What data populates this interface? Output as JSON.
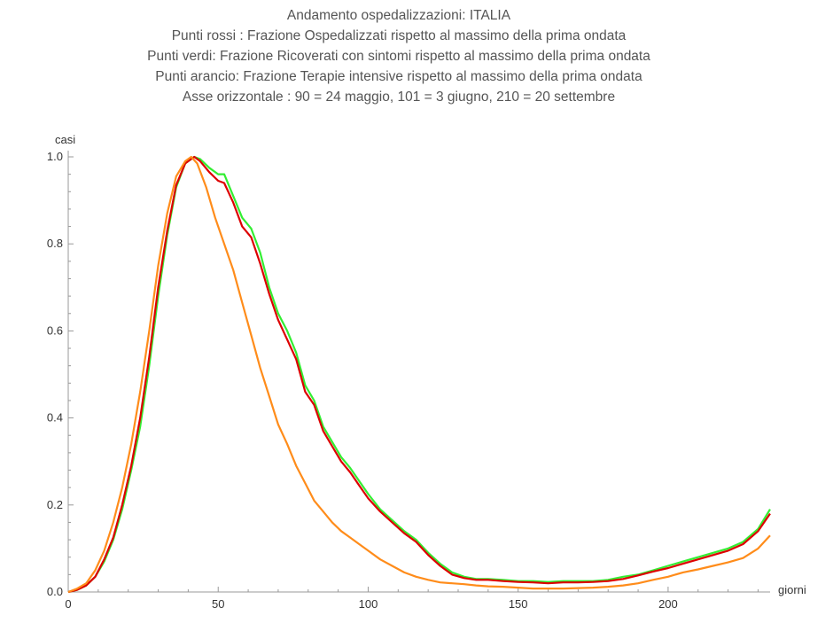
{
  "title_lines": [
    "Andamento ospedalizzazioni: ITALIA",
    "Punti rossi : Frazione  Ospedalizzati rispetto al massimo della prima ondata",
    "Punti verdi: Frazione Ricoverati con sintomi rispetto al massimo della prima ondata",
    "Punti arancio: Frazione Terapie intensive rispetto al massimo della prima ondata",
    "Asse orizzontale : 90 = 24 maggio, 101 = 3 giugno, 210 = 20 settembre"
  ],
  "chart_data": {
    "type": "line",
    "xlabel": "giorni",
    "ylabel": "casi",
    "xlim": [
      0,
      234
    ],
    "ylim": [
      0,
      1.0
    ],
    "x_ticks": [
      0,
      50,
      100,
      150,
      200
    ],
    "y_ticks": [
      0.0,
      0.2,
      0.4,
      0.6,
      0.8,
      1.0
    ],
    "x_tick_labels": [
      "0",
      "50",
      "100",
      "150",
      "200"
    ],
    "y_tick_labels": [
      "0.0",
      "0.2",
      "0.4",
      "0.6",
      "0.8",
      "1.0"
    ],
    "grid": false,
    "series": [
      {
        "color": "#33ee33",
        "points": [
          [
            0,
            0
          ],
          [
            3,
            0.005
          ],
          [
            6,
            0.015
          ],
          [
            9,
            0.035
          ],
          [
            12,
            0.07
          ],
          [
            15,
            0.12
          ],
          [
            18,
            0.19
          ],
          [
            21,
            0.28
          ],
          [
            24,
            0.38
          ],
          [
            27,
            0.52
          ],
          [
            30,
            0.68
          ],
          [
            33,
            0.82
          ],
          [
            36,
            0.93
          ],
          [
            39,
            0.985
          ],
          [
            42,
            1.0
          ],
          [
            44,
            0.995
          ],
          [
            47,
            0.975
          ],
          [
            50,
            0.96
          ],
          [
            52,
            0.96
          ],
          [
            55,
            0.91
          ],
          [
            58,
            0.86
          ],
          [
            61,
            0.835
          ],
          [
            64,
            0.78
          ],
          [
            67,
            0.7
          ],
          [
            70,
            0.64
          ],
          [
            73,
            0.6
          ],
          [
            76,
            0.55
          ],
          [
            79,
            0.475
          ],
          [
            82,
            0.44
          ],
          [
            85,
            0.38
          ],
          [
            88,
            0.345
          ],
          [
            91,
            0.31
          ],
          [
            94,
            0.285
          ],
          [
            97,
            0.255
          ],
          [
            100,
            0.225
          ],
          [
            104,
            0.19
          ],
          [
            108,
            0.165
          ],
          [
            112,
            0.14
          ],
          [
            116,
            0.12
          ],
          [
            120,
            0.09
          ],
          [
            124,
            0.065
          ],
          [
            128,
            0.045
          ],
          [
            132,
            0.035
          ],
          [
            136,
            0.03
          ],
          [
            140,
            0.03
          ],
          [
            145,
            0.028
          ],
          [
            150,
            0.025
          ],
          [
            155,
            0.025
          ],
          [
            160,
            0.023
          ],
          [
            165,
            0.025
          ],
          [
            170,
            0.025
          ],
          [
            175,
            0.025
          ],
          [
            180,
            0.028
          ],
          [
            185,
            0.035
          ],
          [
            190,
            0.04
          ],
          [
            195,
            0.05
          ],
          [
            200,
            0.06
          ],
          [
            205,
            0.07
          ],
          [
            210,
            0.08
          ],
          [
            215,
            0.09
          ],
          [
            220,
            0.1
          ],
          [
            225,
            0.115
          ],
          [
            230,
            0.145
          ],
          [
            234,
            0.19
          ]
        ]
      },
      {
        "color": "#dd0000",
        "points": [
          [
            0,
            0
          ],
          [
            3,
            0.005
          ],
          [
            6,
            0.015
          ],
          [
            9,
            0.035
          ],
          [
            12,
            0.075
          ],
          [
            15,
            0.125
          ],
          [
            18,
            0.2
          ],
          [
            21,
            0.29
          ],
          [
            24,
            0.4
          ],
          [
            27,
            0.54
          ],
          [
            30,
            0.7
          ],
          [
            33,
            0.83
          ],
          [
            36,
            0.935
          ],
          [
            39,
            0.985
          ],
          [
            42,
            1.0
          ],
          [
            44,
            0.99
          ],
          [
            47,
            0.965
          ],
          [
            50,
            0.945
          ],
          [
            52,
            0.94
          ],
          [
            55,
            0.895
          ],
          [
            58,
            0.84
          ],
          [
            61,
            0.815
          ],
          [
            64,
            0.755
          ],
          [
            67,
            0.685
          ],
          [
            70,
            0.625
          ],
          [
            73,
            0.58
          ],
          [
            76,
            0.535
          ],
          [
            79,
            0.46
          ],
          [
            82,
            0.43
          ],
          [
            85,
            0.37
          ],
          [
            88,
            0.335
          ],
          [
            91,
            0.3
          ],
          [
            94,
            0.275
          ],
          [
            97,
            0.245
          ],
          [
            100,
            0.215
          ],
          [
            104,
            0.185
          ],
          [
            108,
            0.16
          ],
          [
            112,
            0.135
          ],
          [
            116,
            0.115
          ],
          [
            120,
            0.085
          ],
          [
            124,
            0.06
          ],
          [
            128,
            0.04
          ],
          [
            132,
            0.032
          ],
          [
            136,
            0.028
          ],
          [
            140,
            0.028
          ],
          [
            145,
            0.025
          ],
          [
            150,
            0.023
          ],
          [
            155,
            0.022
          ],
          [
            160,
            0.02
          ],
          [
            165,
            0.022
          ],
          [
            170,
            0.022
          ],
          [
            175,
            0.023
          ],
          [
            180,
            0.025
          ],
          [
            185,
            0.03
          ],
          [
            190,
            0.038
          ],
          [
            195,
            0.047
          ],
          [
            200,
            0.055
          ],
          [
            205,
            0.065
          ],
          [
            210,
            0.075
          ],
          [
            215,
            0.085
          ],
          [
            220,
            0.095
          ],
          [
            225,
            0.11
          ],
          [
            230,
            0.14
          ],
          [
            234,
            0.18
          ]
        ]
      },
      {
        "color": "#ff8c1a",
        "points": [
          [
            0,
            0
          ],
          [
            3,
            0.008
          ],
          [
            6,
            0.02
          ],
          [
            9,
            0.05
          ],
          [
            12,
            0.095
          ],
          [
            15,
            0.16
          ],
          [
            18,
            0.24
          ],
          [
            21,
            0.34
          ],
          [
            24,
            0.46
          ],
          [
            27,
            0.6
          ],
          [
            30,
            0.75
          ],
          [
            33,
            0.87
          ],
          [
            36,
            0.955
          ],
          [
            39,
            0.99
          ],
          [
            41,
            1.0
          ],
          [
            43,
            0.985
          ],
          [
            46,
            0.93
          ],
          [
            49,
            0.86
          ],
          [
            52,
            0.8
          ],
          [
            55,
            0.74
          ],
          [
            58,
            0.665
          ],
          [
            61,
            0.59
          ],
          [
            64,
            0.515
          ],
          [
            67,
            0.45
          ],
          [
            70,
            0.385
          ],
          [
            73,
            0.34
          ],
          [
            76,
            0.29
          ],
          [
            79,
            0.25
          ],
          [
            82,
            0.21
          ],
          [
            85,
            0.185
          ],
          [
            88,
            0.16
          ],
          [
            91,
            0.14
          ],
          [
            94,
            0.125
          ],
          [
            97,
            0.11
          ],
          [
            100,
            0.095
          ],
          [
            104,
            0.075
          ],
          [
            108,
            0.06
          ],
          [
            112,
            0.045
          ],
          [
            116,
            0.035
          ],
          [
            120,
            0.028
          ],
          [
            124,
            0.022
          ],
          [
            128,
            0.02
          ],
          [
            132,
            0.018
          ],
          [
            136,
            0.015
          ],
          [
            140,
            0.013
          ],
          [
            145,
            0.012
          ],
          [
            150,
            0.01
          ],
          [
            155,
            0.008
          ],
          [
            160,
            0.008
          ],
          [
            165,
            0.008
          ],
          [
            170,
            0.009
          ],
          [
            175,
            0.01
          ],
          [
            180,
            0.012
          ],
          [
            185,
            0.015
          ],
          [
            190,
            0.02
          ],
          [
            195,
            0.028
          ],
          [
            200,
            0.035
          ],
          [
            205,
            0.045
          ],
          [
            210,
            0.052
          ],
          [
            215,
            0.06
          ],
          [
            220,
            0.068
          ],
          [
            225,
            0.078
          ],
          [
            230,
            0.1
          ],
          [
            234,
            0.13
          ]
        ]
      }
    ]
  }
}
